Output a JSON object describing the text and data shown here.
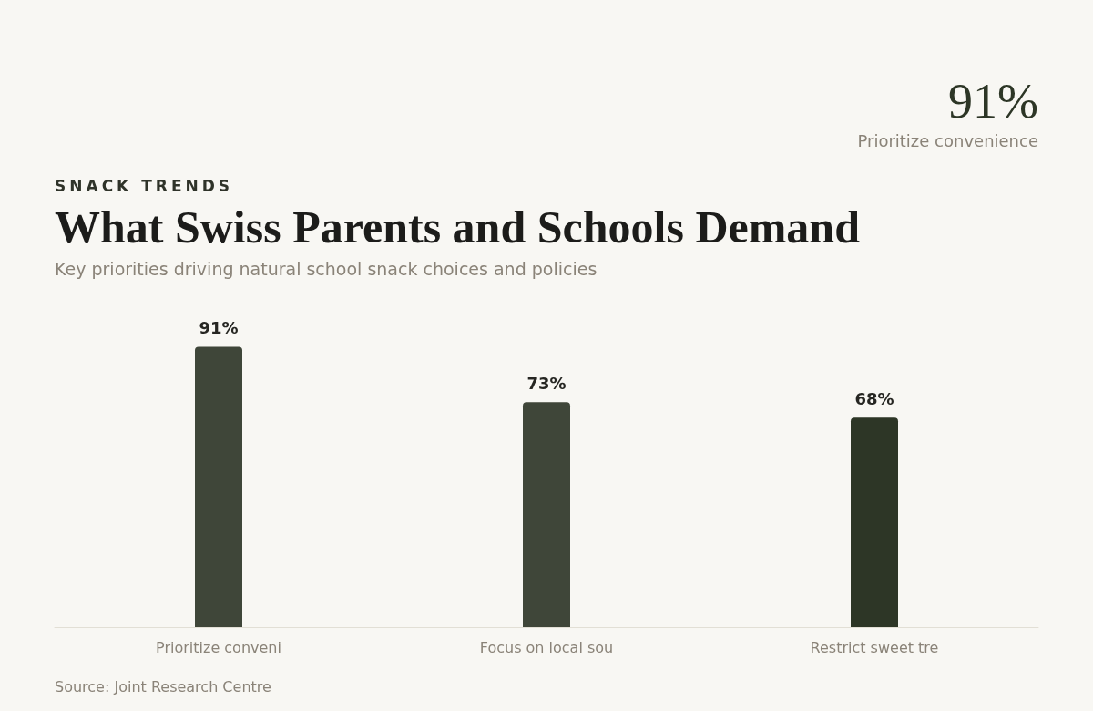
{
  "chart_data": {
    "type": "bar",
    "title": "What Swiss Parents and Schools Demand",
    "subtitle": "Key priorities driving natural school snack choices and policies",
    "annotations": [
      "SNACK TRENDS",
      "91%",
      "Prioritize convenience",
      "Source: Joint Research Centre"
    ],
    "categories": [
      "Prioritize conveni",
      "Focus on local sou",
      "Restrict sweet tre"
    ],
    "values": [
      91,
      73,
      68
    ],
    "colors": [
      "#3f4639",
      "#3f4639",
      "#2d3626"
    ],
    "value_labels": [
      "91%",
      "73%",
      "68%"
    ],
    "grid": false
  }
}
